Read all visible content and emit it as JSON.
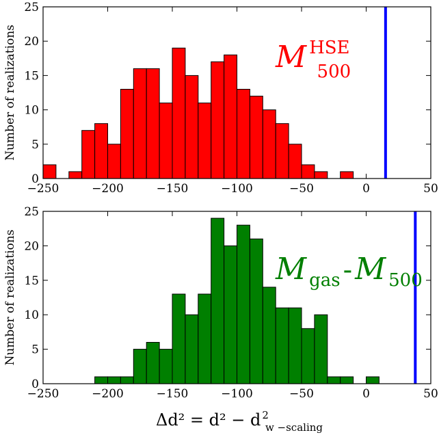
{
  "chart_data": [
    {
      "type": "bar",
      "id": "top",
      "bin_width": 10,
      "bins_left": [
        -250,
        -240,
        -230,
        -220,
        -210,
        -200,
        -190,
        -180,
        -170,
        -160,
        -150,
        -140,
        -130,
        -120,
        -110,
        -100,
        -90,
        -80,
        -70,
        -60,
        -50,
        -40,
        -30,
        -20,
        -10
      ],
      "values": [
        2,
        0,
        1,
        7,
        8,
        5,
        13,
        16,
        16,
        11,
        19,
        15,
        11,
        17,
        18,
        13,
        12,
        10,
        8,
        5,
        2,
        1,
        0,
        1,
        0
      ],
      "bar_color": "#ff0000",
      "xlim": [
        -250,
        50
      ],
      "ylim": [
        0,
        25
      ],
      "xticks": [
        "−250",
        "−200",
        "−150",
        "−100",
        "−50",
        "0",
        "50"
      ],
      "yticks": [
        "0",
        "5",
        "10",
        "15",
        "20",
        "25"
      ],
      "ylabel": "Number of realizations",
      "vline_x": 15,
      "vline_color": "#0000ff",
      "annotation": {
        "main": "M",
        "sup": "HSE",
        "sub": "500",
        "color": "#ff0000"
      }
    },
    {
      "type": "bar",
      "id": "bottom",
      "bin_width": 10,
      "bins_left": [
        -210,
        -200,
        -190,
        -180,
        -170,
        -160,
        -150,
        -140,
        -130,
        -120,
        -110,
        -100,
        -90,
        -80,
        -70,
        -60,
        -50,
        -40,
        -30,
        -20,
        -10,
        0
      ],
      "values": [
        1,
        1,
        1,
        5,
        6,
        5,
        13,
        10,
        13,
        24,
        20,
        23,
        21,
        14,
        11,
        11,
        8,
        10,
        1,
        1,
        0,
        1
      ],
      "bar_color": "#007f00",
      "xlim": [
        -250,
        50
      ],
      "ylim": [
        0,
        25
      ],
      "xticks": [
        "−250",
        "−200",
        "−150",
        "−100",
        "−50",
        "0",
        "50"
      ],
      "yticks": [
        "0",
        "5",
        "10",
        "15",
        "20",
        "25"
      ],
      "ylabel": "Number of realizations",
      "vline_x": 38,
      "vline_color": "#0000ff",
      "annotation": {
        "main1": "M",
        "sub1": "gas",
        "dash": "-",
        "main2": "M",
        "sub2": "500",
        "color": "#007f00"
      }
    }
  ],
  "xlabel": {
    "main": "Δd² = d² − d",
    "sup": "2",
    "sub": "w −scaling"
  }
}
